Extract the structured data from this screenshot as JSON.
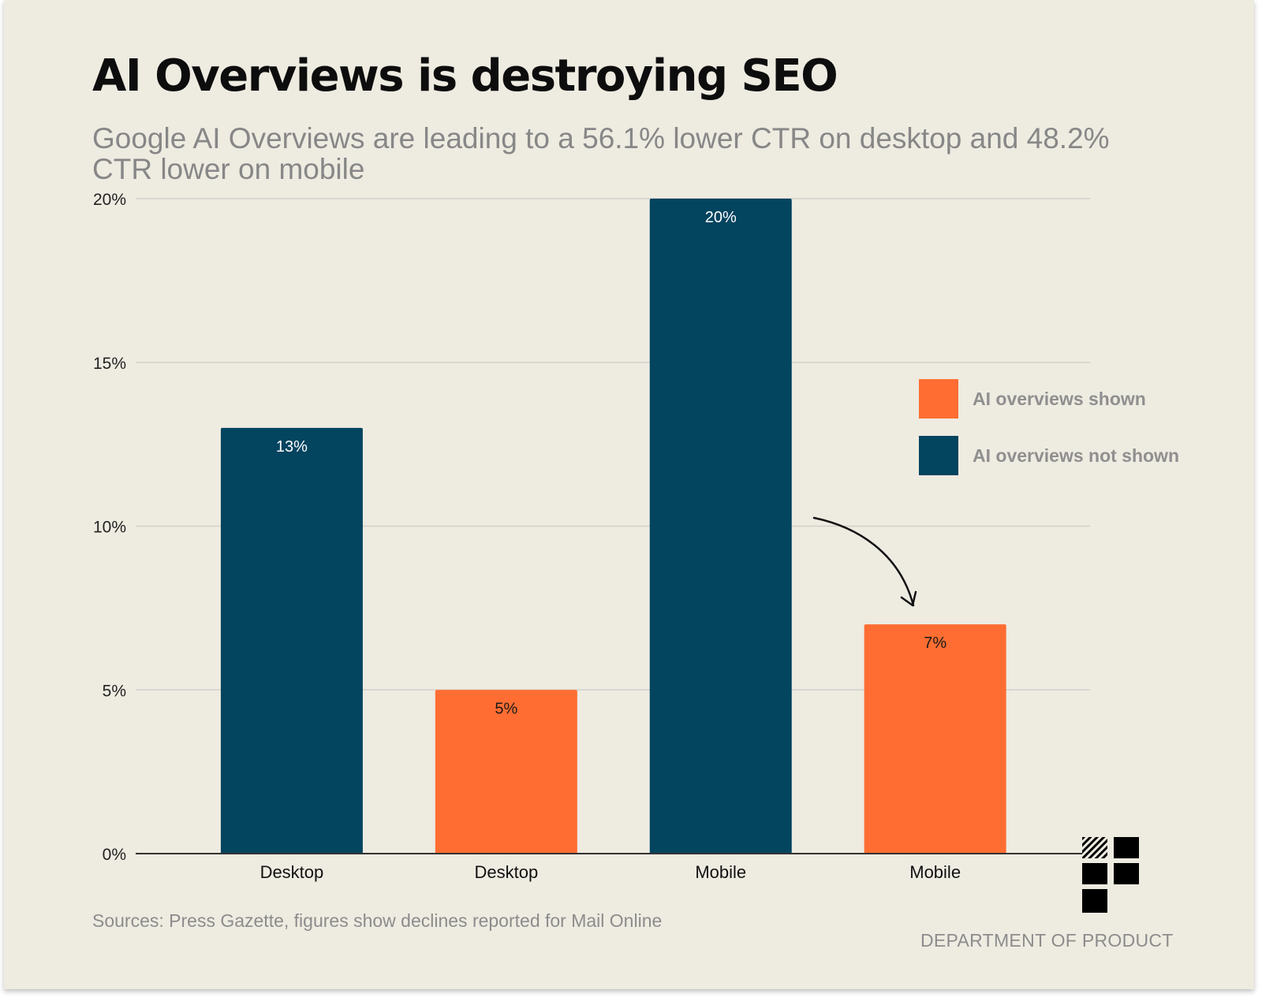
{
  "title": "AI Overviews is destroying SEO",
  "subtitle": "Google AI Overviews are leading to a 56.1% lower CTR on desktop and 48.2% CTR lower on mobile",
  "legend": {
    "shown_label": "AI overviews shown",
    "not_shown_label": "AI overviews not shown"
  },
  "colors": {
    "ai_shown": "#ff6d32",
    "ai_not_shown": "#03445f"
  },
  "source": "Sources: Press Gazette, figures show declines reported for Mail Online",
  "brand": {
    "name": "DEPARTMENT OF PRODUCT",
    "logo_icon": "department-of-product-logo"
  },
  "chart_data": {
    "type": "bar",
    "categories": [
      "Desktop",
      "Desktop",
      "Mobile",
      "Mobile"
    ],
    "values": [
      13,
      5,
      20,
      7
    ],
    "value_labels": [
      "13%",
      "5%",
      "20%",
      "7%"
    ],
    "bar_groups": [
      "AI overviews not shown",
      "AI overviews shown",
      "AI overviews not shown",
      "AI overviews shown"
    ],
    "yticks": [
      0,
      5,
      10,
      15,
      20
    ],
    "ytick_labels": [
      "0%",
      "5%",
      "10%",
      "15%",
      "20%"
    ],
    "ylim": [
      0,
      20
    ],
    "grid": true,
    "legend_position": "right",
    "annotations": [
      "arrow from Mobile (not shown) bar to Mobile (shown) bar"
    ]
  }
}
